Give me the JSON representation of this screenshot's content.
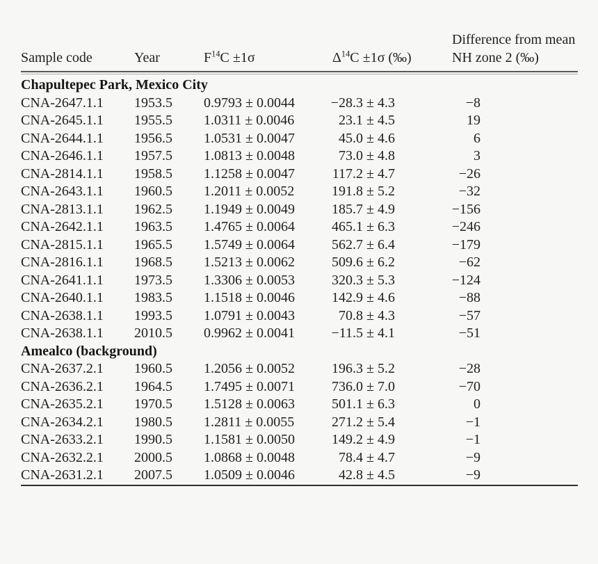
{
  "colors": {
    "background": "#f7f7f5",
    "text": "#1f1f1f",
    "header_rule_dark": "#57575b",
    "header_rule_light": "#ababaf",
    "bottom_rule": "#2e2e30"
  },
  "header": {
    "columns": [
      {
        "label": "Sample code"
      },
      {
        "label": "Year"
      },
      {
        "pre": "F",
        "sup": "14",
        "post": "C ±1σ"
      },
      {
        "pre": "Δ",
        "sup": "14",
        "post": "C ±1σ (‰)"
      },
      {
        "line1": "Difference from mean",
        "line2": "NH zone 2 (‰)"
      }
    ]
  },
  "sections": [
    {
      "title": "Chapultepec Park, Mexico City",
      "rows": [
        {
          "sample": "CNA-2647.1.1",
          "year": "1953.5",
          "f14c": "0.9793 ± 0.0044",
          "d14c": "−28.3 ± 4.3",
          "diff": "−8"
        },
        {
          "sample": "CNA-2645.1.1",
          "year": "1955.5",
          "f14c": "1.0311 ± 0.0046",
          "d14c": "23.1 ± 4.5",
          "diff": "19"
        },
        {
          "sample": "CNA-2644.1.1",
          "year": "1956.5",
          "f14c": "1.0531 ± 0.0047",
          "d14c": "45.0 ± 4.6",
          "diff": "6"
        },
        {
          "sample": "CNA-2646.1.1",
          "year": "1957.5",
          "f14c": "1.0813 ± 0.0048",
          "d14c": "73.0 ± 4.8",
          "diff": "3"
        },
        {
          "sample": "CNA-2814.1.1",
          "year": "1958.5",
          "f14c": "1.1258 ± 0.0047",
          "d14c": "117.2 ± 4.7",
          "diff": "−26"
        },
        {
          "sample": "CNA-2643.1.1",
          "year": "1960.5",
          "f14c": "1.2011 ± 0.0052",
          "d14c": "191.8 ± 5.2",
          "diff": "−32"
        },
        {
          "sample": "CNA-2813.1.1",
          "year": "1962.5",
          "f14c": "1.1949 ± 0.0049",
          "d14c": "185.7 ± 4.9",
          "diff": "−156"
        },
        {
          "sample": "CNA-2642.1.1",
          "year": "1963.5",
          "f14c": "1.4765 ± 0.0064",
          "d14c": "465.1 ± 6.3",
          "diff": "−246"
        },
        {
          "sample": "CNA-2815.1.1",
          "year": "1965.5",
          "f14c": "1.5749 ± 0.0064",
          "d14c": "562.7 ± 6.4",
          "diff": "−179"
        },
        {
          "sample": "CNA-2816.1.1",
          "year": "1968.5",
          "f14c": "1.5213 ± 0.0062",
          "d14c": "509.6 ± 6.2",
          "diff": "−62"
        },
        {
          "sample": "CNA-2641.1.1",
          "year": "1973.5",
          "f14c": "1.3306 ± 0.0053",
          "d14c": "320.3 ± 5.3",
          "diff": "−124"
        },
        {
          "sample": "CNA-2640.1.1",
          "year": "1983.5",
          "f14c": "1.1518 ± 0.0046",
          "d14c": "142.9 ± 4.6",
          "diff": "−88"
        },
        {
          "sample": "CNA-2638.1.1",
          "year": "1993.5",
          "f14c": "1.0791 ± 0.0043",
          "d14c": "70.8 ± 4.3",
          "diff": "−57"
        },
        {
          "sample": "CNA-2638.1.1",
          "year": "2010.5",
          "f14c": "0.9962 ± 0.0041",
          "d14c": "−11.5 ± 4.1",
          "diff": "−51"
        }
      ]
    },
    {
      "title": "Amealco (background)",
      "rows": [
        {
          "sample": "CNA-2637.2.1",
          "year": "1960.5",
          "f14c": "1.2056 ± 0.0052",
          "d14c": "196.3 ± 5.2",
          "diff": "−28"
        },
        {
          "sample": "CNA-2636.2.1",
          "year": "1964.5",
          "f14c": "1.7495 ± 0.0071",
          "d14c": "736.0 ± 7.0",
          "diff": "−70"
        },
        {
          "sample": "CNA-2635.2.1",
          "year": "1970.5",
          "f14c": "1.5128 ± 0.0063",
          "d14c": "501.1 ± 6.3",
          "diff": "0"
        },
        {
          "sample": "CNA-2634.2.1",
          "year": "1980.5",
          "f14c": "1.2811 ± 0.0055",
          "d14c": "271.2 ± 5.4",
          "diff": "−1"
        },
        {
          "sample": "CNA-2633.2.1",
          "year": "1990.5",
          "f14c": "1.1581 ± 0.0050",
          "d14c": "149.2 ± 4.9",
          "diff": "−1"
        },
        {
          "sample": "CNA-2632.2.1",
          "year": "2000.5",
          "f14c": "1.0868 ± 0.0048",
          "d14c": "78.4 ± 4.7",
          "diff": "−9"
        },
        {
          "sample": "CNA-2631.2.1",
          "year": "2007.5",
          "f14c": "1.0509 ± 0.0046",
          "d14c": "42.8 ± 4.5",
          "diff": "−9"
        }
      ]
    }
  ]
}
